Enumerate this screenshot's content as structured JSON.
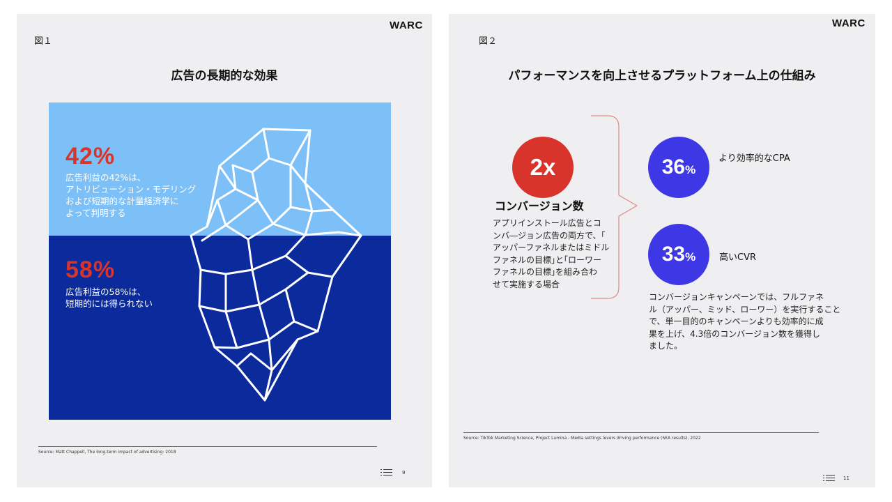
{
  "figure1": {
    "logo": "WARC",
    "fig_label": "図１",
    "title": "広告の長期的な効果",
    "top": {
      "percent": "42%",
      "description": "広告利益の42%は、\nアトリビューション・モデリング\nおよび短期的な計量経済学に\nよって判明する"
    },
    "bottom": {
      "percent": "58%",
      "description": "広告利益の58%は、\n短期的には得られない"
    },
    "source": "Source: Matt Chappell, The long-term impact of advertising: 2018",
    "page_number": "9",
    "colors": {
      "sky": "#7dc0f7",
      "sea": "#0b2a9b",
      "accent": "#d8342b"
    },
    "icon": "list-icon"
  },
  "figure2": {
    "logo": "WARC",
    "fig_label": "図２",
    "title": "パフォーマンスを向上させるプラットフォーム上の仕組み",
    "conversion": {
      "value": "2x",
      "heading": "コンバージョン数",
      "description": "アプリインストール広告とコ\nンバ―ジョン広告の両方で、｢\nアッパーファネルまたはミドル\nファネルの目標｣と｢ローワー\nファネルの目標｣を組み合わ\nせて実施する場合"
    },
    "metrics": [
      {
        "value": "36",
        "unit": "%",
        "label": "より効率的なCPA"
      },
      {
        "value": "33",
        "unit": "%",
        "label": "高いCVR"
      }
    ],
    "note": "コンバージョンキャンペーンでは、フルファネ\nル（アッパー、ミッド、ローワー）を実行すること\nで、単一目的のキャンペーンよりも効率的に成\n果を上げ、4.3倍のコンバージョン数を獲得し\nました。",
    "source": "Source: TikTok Marketing Science, Project Lumina - Media settings levers driving performance (SEA results), 2022",
    "page_number": "11",
    "colors": {
      "red": "#d8342b",
      "blue": "#3e37e6",
      "bracket": "#e08a80"
    },
    "icon": "list-icon"
  }
}
